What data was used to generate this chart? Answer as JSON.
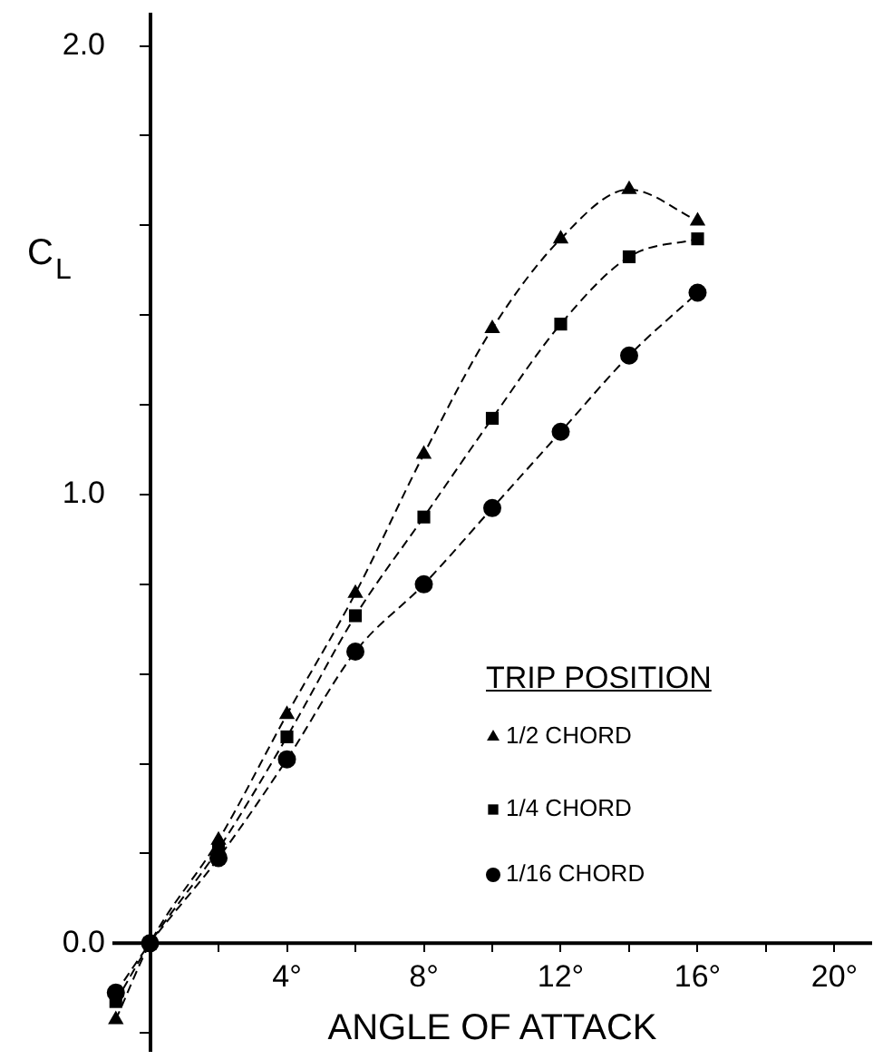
{
  "chart_data": {
    "type": "line",
    "xlabel": "ANGLE OF ATTACK",
    "ylabel": "C$_{L}$",
    "legend_title": "TRIP POSITION",
    "legend": "bottom right",
    "line_style": "dashed",
    "grid": false,
    "xlim": [
      -1.1,
      21.1
    ],
    "ylim": [
      -0.24,
      2.07
    ],
    "xticks": [
      {
        "value": 2,
        "label": null
      },
      {
        "value": 4,
        "label": "4°"
      },
      {
        "value": 6,
        "label": null
      },
      {
        "value": 8,
        "label": "8°"
      },
      {
        "value": 10,
        "label": null
      },
      {
        "value": 12,
        "label": "12°"
      },
      {
        "value": 14,
        "label": null
      },
      {
        "value": 16,
        "label": "16°"
      },
      {
        "value": 18,
        "label": null
      },
      {
        "value": 20,
        "label": "20°"
      }
    ],
    "yticks": [
      {
        "value": -0.2,
        "label": null
      },
      {
        "value": 0,
        "label": "0.0"
      },
      {
        "value": 0.2,
        "label": null
      },
      {
        "value": 0.4,
        "label": null
      },
      {
        "value": 0.6,
        "label": null
      },
      {
        "value": 0.8,
        "label": null
      },
      {
        "value": 1,
        "label": "1.0"
      },
      {
        "value": 1.2,
        "label": null
      },
      {
        "value": 1.4,
        "label": null
      },
      {
        "value": 1.6,
        "label": null
      },
      {
        "value": 1.8,
        "label": null
      },
      {
        "value": 2,
        "label": "2.0"
      }
    ],
    "series": [
      {
        "name": "1/2 CHORD",
        "color": "#000000",
        "marker": "triangle",
        "x": [
          -1,
          0,
          2,
          4,
          6,
          8,
          10,
          12,
          14,
          16
        ],
        "values": [
          -0.17,
          0,
          0.23,
          0.51,
          0.78,
          1.09,
          1.37,
          1.57,
          1.68,
          1.61
        ]
      },
      {
        "name": "1/4 CHORD",
        "color": "#000000",
        "marker": "square",
        "x": [
          -1,
          0,
          2,
          4,
          6,
          8,
          10,
          12,
          14,
          16
        ],
        "values": [
          -0.13,
          0,
          0.21,
          0.46,
          0.73,
          0.95,
          1.17,
          1.38,
          1.53,
          1.57
        ]
      },
      {
        "name": "1/16 CHORD",
        "color": "#000000",
        "marker": "circle",
        "x": [
          -1,
          0,
          2,
          4,
          6,
          8,
          10,
          12,
          14,
          16
        ],
        "values": [
          -0.11,
          0,
          0.19,
          0.41,
          0.65,
          0.8,
          0.97,
          1.14,
          1.31,
          1.45
        ]
      }
    ]
  }
}
